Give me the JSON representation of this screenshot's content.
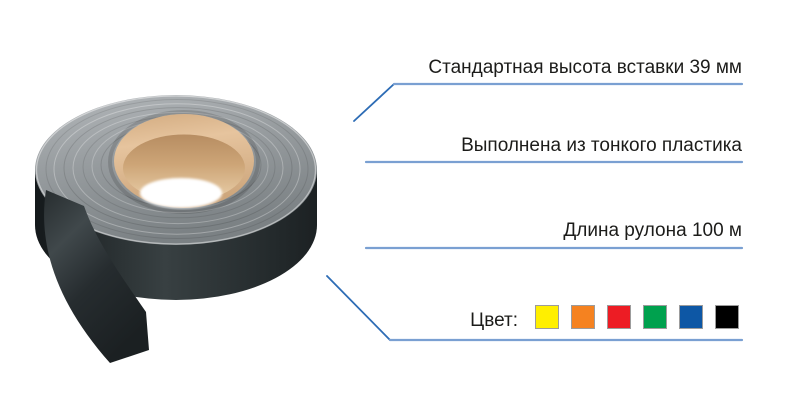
{
  "page": {
    "type": "product-infographic",
    "background": "#ffffff"
  },
  "product_illustration": {
    "description_colors": {
      "tape_side": "#262c2e",
      "tape_top_face": "#969b9e",
      "cardboard_core": "#ddb68d",
      "hole_seen_through": "#ffffff"
    }
  },
  "annotations": [
    {
      "id": "height",
      "label": "Стандартная высота вставки 39 мм"
    },
    {
      "id": "material",
      "label": "Выполнена из тонкого пластика"
    },
    {
      "id": "length",
      "label": "Длина рулона 100 м"
    }
  ],
  "color_row": {
    "label": "Цвет:",
    "swatches": [
      {
        "name": "yellow",
        "hex": "#ffef00"
      },
      {
        "name": "orange",
        "hex": "#f58220"
      },
      {
        "name": "red",
        "hex": "#ed1c24"
      },
      {
        "name": "green",
        "hex": "#00a14e"
      },
      {
        "name": "blue",
        "hex": "#0d57a5"
      },
      {
        "name": "black",
        "hex": "#000000"
      }
    ]
  },
  "colors": {
    "text": "#1c1c1a",
    "line_horizontal": "#7aa0d2",
    "line_diagonal": "#2d6cb5",
    "swatch_border": "#9c9c9c"
  }
}
